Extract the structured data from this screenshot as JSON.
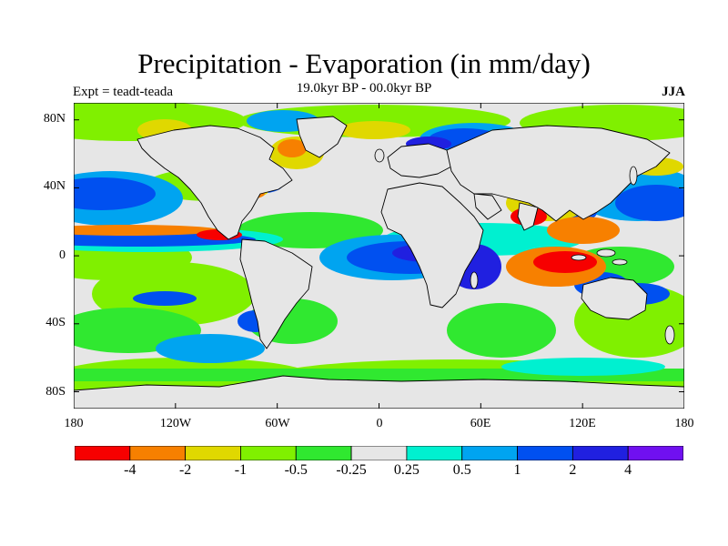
{
  "title": "Precipitation - Evaporation (in mm/day)",
  "subtitle": "19.0kyr BP - 00.0kyr BP",
  "expt": "Expt = teadt-teada",
  "season": "JJA",
  "lat_labels": [
    "80N",
    "40N",
    "0",
    "40S",
    "80S"
  ],
  "lon_labels": [
    "180",
    "120W",
    "60W",
    "0",
    "60E",
    "120E",
    "180"
  ],
  "colorbar": {
    "colors": [
      "#f70000",
      "#f78000",
      "#e0d800",
      "#80f000",
      "#30e830",
      "#e6e6e6",
      "#00f0d0",
      "#00a4f0",
      "#0050f0",
      "#2020e0",
      "#7010f0"
    ],
    "labels": [
      "-4",
      "-2",
      "-1",
      "-0.5",
      "-0.25",
      "0.25",
      "0.5",
      "1",
      "2",
      "4"
    ]
  },
  "map_background_color": "#e6e6e6"
}
